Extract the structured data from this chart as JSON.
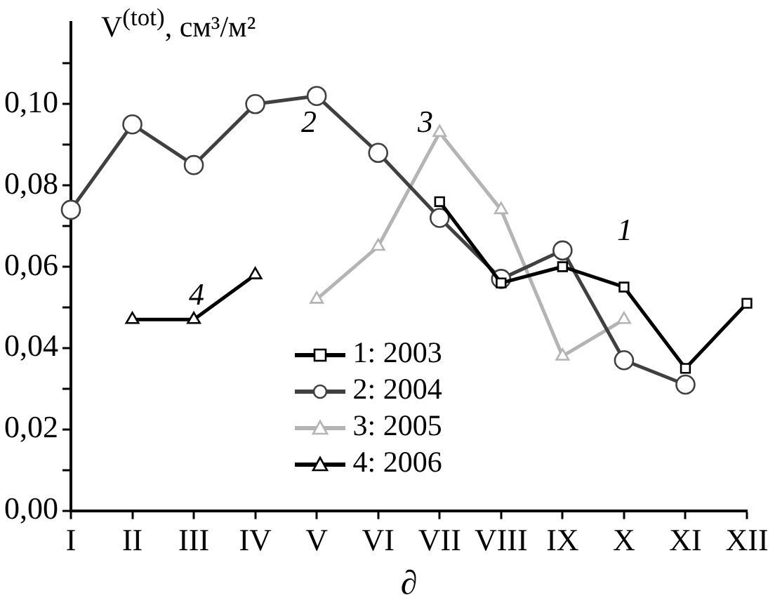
{
  "chart_data": {
    "type": "line",
    "ylabel": "V$^{(tot)}$, см³/м²",
    "xlabel": "∂",
    "categories": [
      "I",
      "II",
      "III",
      "IV",
      "V",
      "VI",
      "VII",
      "VIII",
      "IX",
      "X",
      "XI",
      "XII"
    ],
    "series": [
      {
        "name": "1: 2003",
        "color": "#000000",
        "marker": "square",
        "values": [
          null,
          null,
          null,
          null,
          null,
          null,
          0.076,
          0.056,
          0.06,
          0.055,
          0.035,
          0.051
        ]
      },
      {
        "name": "2: 2004",
        "color": "#404040",
        "marker": "circle",
        "values": [
          0.074,
          0.095,
          0.085,
          0.1,
          0.102,
          0.088,
          0.072,
          0.057,
          0.064,
          0.037,
          0.031,
          null
        ]
      },
      {
        "name": "3: 2005",
        "color": "#b4b4b4",
        "marker": "triangle",
        "values": [
          null,
          null,
          null,
          null,
          0.052,
          0.065,
          0.093,
          0.074,
          0.038,
          0.047,
          null,
          null
        ]
      },
      {
        "name": "4: 2006",
        "color": "#000000",
        "marker": "triangle",
        "values": [
          null,
          0.047,
          0.047,
          0.058,
          null,
          null,
          null,
          null,
          null,
          null,
          null,
          null
        ]
      }
    ],
    "ylim": [
      0,
      0.12
    ],
    "yticks": [
      {
        "value": 0,
        "label": "0,00"
      },
      {
        "value": 0.01,
        "label": null
      },
      {
        "value": 0.02,
        "label": "0,02"
      },
      {
        "value": 0.03,
        "label": null
      },
      {
        "value": 0.04,
        "label": "0,04"
      },
      {
        "value": 0.05,
        "label": null
      },
      {
        "value": 0.06,
        "label": "0,06"
      },
      {
        "value": 0.07,
        "label": null
      },
      {
        "value": 0.08,
        "label": "0,08"
      },
      {
        "value": 0.09,
        "label": null
      },
      {
        "value": 0.1,
        "label": "0,10"
      },
      {
        "value": 0.11,
        "label": null
      }
    ],
    "annotations": [
      "1",
      "2",
      "3",
      "4"
    ],
    "legend": "bottom",
    "grid": false
  }
}
